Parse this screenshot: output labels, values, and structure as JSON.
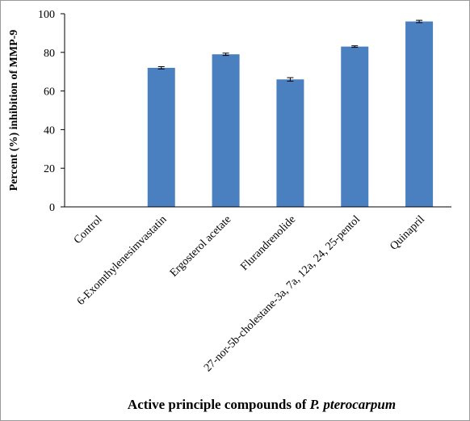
{
  "chart_data": {
    "type": "bar",
    "categories": [
      "Control",
      "6-Exomthylenesimvastatin",
      "Ergosterol acetate",
      "Flurandrenolide",
      "27-nor-5b-cholestane-3a, 7a, 12a, 24, 25-pentol",
      "Quinapril"
    ],
    "values": [
      0,
      72,
      79,
      66,
      83,
      96
    ],
    "errors": [
      0,
      0.6,
      0.6,
      0.9,
      0.4,
      0.6
    ],
    "ylabel": "Percent (%) inhibition of MMP-9",
    "xlabel_main": "Active principle compounds of ",
    "xlabel_italic": "P. pterocarpum",
    "ylim": [
      0,
      100
    ],
    "yticks": [
      0,
      20,
      40,
      60,
      80,
      100
    ],
    "bar_color": "#4a80c0",
    "grid": false,
    "legend": "none"
  }
}
